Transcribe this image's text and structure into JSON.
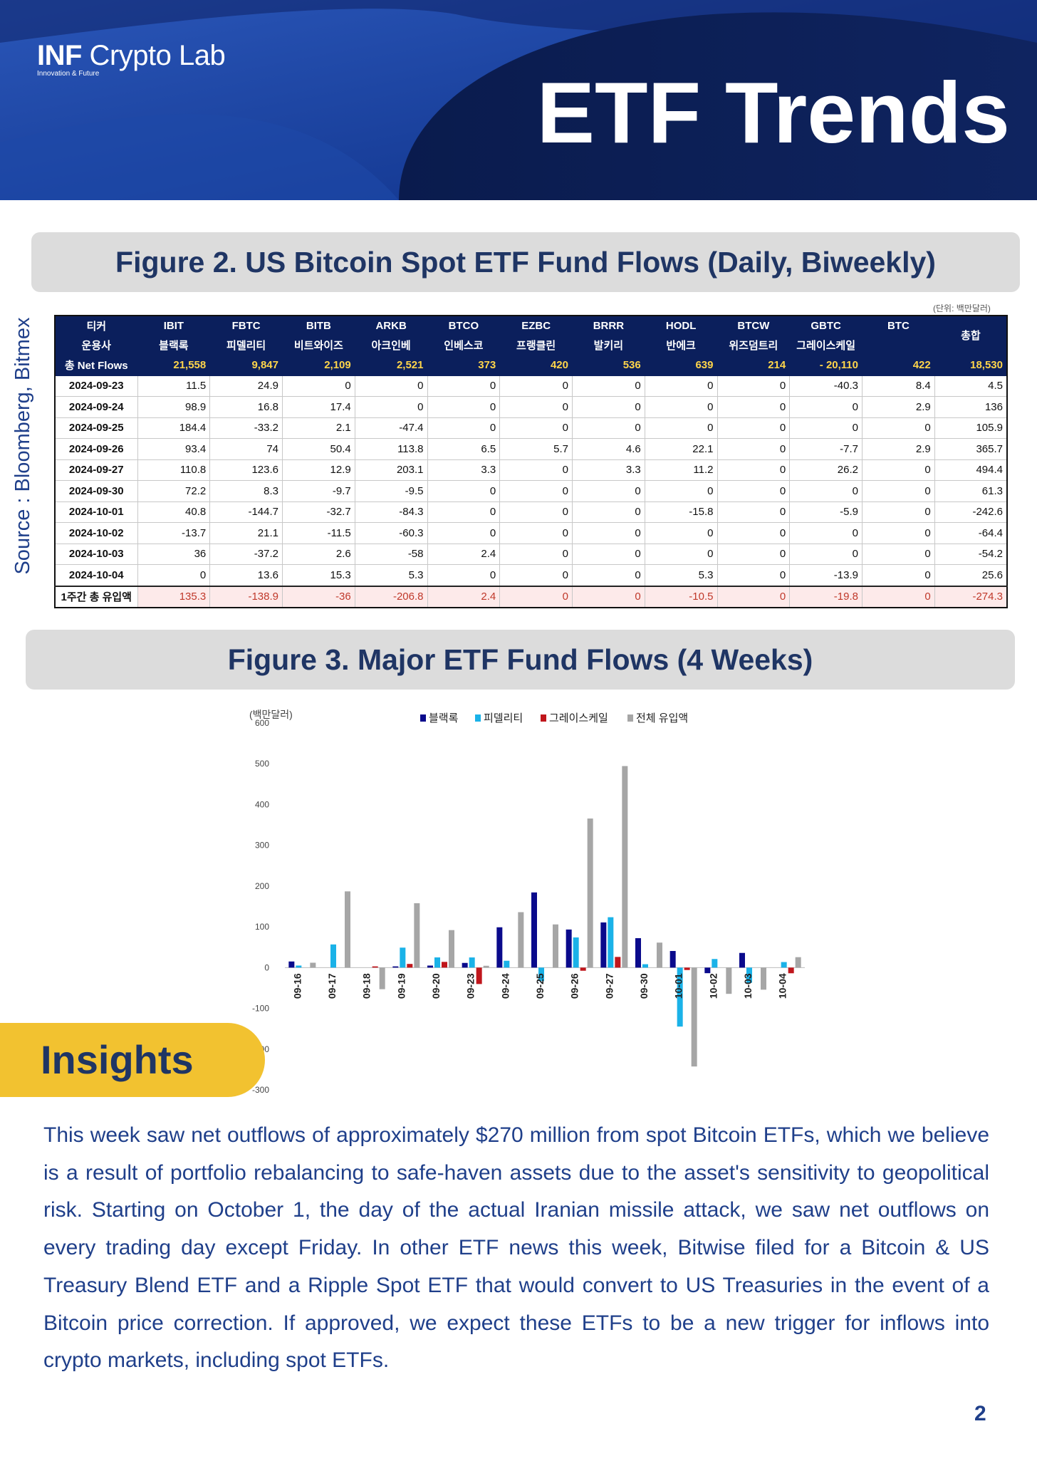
{
  "header": {
    "logo_main_bold": "INF",
    "logo_main_rest": " Crypto Lab",
    "logo_tagline": "Innovation & Future",
    "title": "ETF Trends"
  },
  "figure2": {
    "title": "Figure 2. US Bitcoin Spot ETF Fund Flows (Daily, Biweekly)",
    "unit_note": "(단위: 백만달러)",
    "tickers_label": "티커",
    "managers_label": "운용사",
    "total_label": "총 Net Flows",
    "grand_total_label": "총합",
    "weekly_label": "1주간 총 유입액",
    "tickers": [
      "IBIT",
      "FBTC",
      "BITB",
      "ARKB",
      "BTCO",
      "EZBC",
      "BRRR",
      "HODL",
      "BTCW",
      "GBTC",
      "BTC"
    ],
    "managers": [
      "블랙록",
      "피델리티",
      "비트와이즈",
      "아크인베",
      "인베스코",
      "프랭클린",
      "발키리",
      "반에크",
      "위즈덤트리",
      "그레이스케일",
      ""
    ],
    "totals": [
      "21,558",
      "9,847",
      "2,109",
      "2,521",
      "373",
      "420",
      "536",
      "639",
      "214",
      "- 20,110",
      "422",
      "18,530"
    ],
    "rows": [
      {
        "date": "2024-09-23",
        "values": [
          "11.5",
          "24.9",
          "0",
          "0",
          "0",
          "0",
          "0",
          "0",
          "0",
          "-40.3",
          "8.4",
          "4.5"
        ]
      },
      {
        "date": "2024-09-24",
        "values": [
          "98.9",
          "16.8",
          "17.4",
          "0",
          "0",
          "0",
          "0",
          "0",
          "0",
          "0",
          "2.9",
          "136"
        ]
      },
      {
        "date": "2024-09-25",
        "values": [
          "184.4",
          "-33.2",
          "2.1",
          "-47.4",
          "0",
          "0",
          "0",
          "0",
          "0",
          "0",
          "0",
          "105.9"
        ]
      },
      {
        "date": "2024-09-26",
        "values": [
          "93.4",
          "74",
          "50.4",
          "113.8",
          "6.5",
          "5.7",
          "4.6",
          "22.1",
          "0",
          "-7.7",
          "2.9",
          "365.7"
        ]
      },
      {
        "date": "2024-09-27",
        "values": [
          "110.8",
          "123.6",
          "12.9",
          "203.1",
          "3.3",
          "0",
          "3.3",
          "11.2",
          "0",
          "26.2",
          "0",
          "494.4"
        ]
      },
      {
        "date": "2024-09-30",
        "values": [
          "72.2",
          "8.3",
          "-9.7",
          "-9.5",
          "0",
          "0",
          "0",
          "0",
          "0",
          "0",
          "0",
          "61.3"
        ]
      },
      {
        "date": "2024-10-01",
        "values": [
          "40.8",
          "-144.7",
          "-32.7",
          "-84.3",
          "0",
          "0",
          "0",
          "-15.8",
          "0",
          "-5.9",
          "0",
          "-242.6"
        ]
      },
      {
        "date": "2024-10-02",
        "values": [
          "-13.7",
          "21.1",
          "-11.5",
          "-60.3",
          "0",
          "0",
          "0",
          "0",
          "0",
          "0",
          "0",
          "-64.4"
        ]
      },
      {
        "date": "2024-10-03",
        "values": [
          "36",
          "-37.2",
          "2.6",
          "-58",
          "2.4",
          "0",
          "0",
          "0",
          "0",
          "0",
          "0",
          "-54.2"
        ]
      },
      {
        "date": "2024-10-04",
        "values": [
          "0",
          "13.6",
          "15.3",
          "5.3",
          "0",
          "0",
          "0",
          "5.3",
          "0",
          "-13.9",
          "0",
          "25.6"
        ]
      }
    ],
    "weekly": [
      "135.3",
      "-138.9",
      "-36",
      "-206.8",
      "2.4",
      "0",
      "0",
      "-10.5",
      "0",
      "-19.8",
      "0",
      "-274.3"
    ]
  },
  "figure3": {
    "title": "Figure 3. Major ETF Fund Flows (4 Weeks)",
    "unit_label": "(백만달러)"
  },
  "source": "Source : Bloomberg, Bitmex",
  "chart_data": {
    "type": "bar",
    "title": "",
    "xlabel": "",
    "ylabel": "(백만달러)",
    "ylim": [
      -300,
      600
    ],
    "yticks": [
      -300,
      -200,
      -100,
      0,
      100,
      200,
      300,
      400,
      500,
      600
    ],
    "grid": false,
    "legend_position": "top",
    "categories": [
      "09-16",
      "09-17",
      "09-18",
      "09-19",
      "09-20",
      "09-23",
      "09-24",
      "09-25",
      "09-26",
      "09-27",
      "09-30",
      "10-01",
      "10-02",
      "10-03",
      "10-04"
    ],
    "series": [
      {
        "name": "블랙록",
        "color": "#0a0a8c",
        "values": [
          15,
          0,
          0,
          3,
          5,
          11.5,
          98.9,
          184.4,
          93.4,
          110.8,
          72.2,
          40.8,
          -13.7,
          36,
          0
        ]
      },
      {
        "name": "피델리티",
        "color": "#1ab2e8",
        "values": [
          5,
          56.8,
          0,
          49,
          25,
          24.9,
          16.8,
          -33.2,
          74,
          123.6,
          8.3,
          -144.7,
          21.1,
          -37.2,
          13.6
        ]
      },
      {
        "name": "그레이스케일",
        "color": "#c0161c",
        "values": [
          0,
          0,
          3,
          9,
          14,
          -40.3,
          0,
          0,
          -7.7,
          26.2,
          0,
          -5.9,
          0,
          0,
          -13.9
        ]
      },
      {
        "name": "전체 유입액",
        "color": "#a6a6a6",
        "values": [
          12,
          187,
          -53,
          158,
          92,
          4.5,
          136,
          105.9,
          365.7,
          494.4,
          61.3,
          -242.6,
          -64.4,
          -54.2,
          25.6
        ]
      }
    ]
  },
  "insights": {
    "title": "Insights",
    "body": "This week saw net outflows of approximately $270 million from spot Bitcoin ETFs, which we believe is a result of portfolio rebalancing to safe-haven assets due to the asset's sensitivity to geopolitical risk. Starting on October 1, the day of the actual Iranian missile attack, we saw net outflows on every trading day except Friday. In other ETF news this week, Bitwise filed for a Bitcoin & US Treasury Blend ETF and a Ripple Spot ETF that would convert to US Treasuries in the event of a Bitcoin price correction. If approved, we expect these ETFs to be a new trigger for inflows into crypto markets, including spot ETFs."
  },
  "page_number": "2"
}
